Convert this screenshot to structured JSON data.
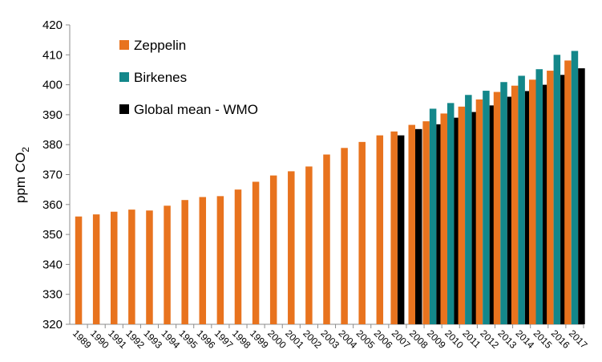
{
  "chart_data": {
    "type": "bar",
    "title": "",
    "xlabel": "",
    "ylabel": {
      "main": "ppm CO",
      "sub": "2"
    },
    "ylim": [
      320,
      420
    ],
    "yticks": [
      320,
      330,
      340,
      350,
      360,
      370,
      380,
      390,
      400,
      410,
      420
    ],
    "grid": false,
    "legend_position": "top-left",
    "categories": [
      "1989",
      "1990",
      "1991",
      "1992",
      "1993",
      "1994",
      "1995",
      "1996",
      "1997",
      "1998",
      "1999",
      "2000",
      "2001",
      "2002",
      "2003",
      "2004",
      "2005",
      "2006",
      "2007",
      "2008",
      "2009",
      "2010",
      "2011",
      "2012",
      "2013",
      "2014",
      "2015",
      "2016",
      "2017"
    ],
    "series": [
      {
        "name": "Zeppelin",
        "color": "#e8731e",
        "values": [
          356.0,
          356.7,
          357.6,
          358.3,
          358.0,
          359.6,
          361.5,
          362.5,
          362.8,
          365.0,
          367.6,
          369.7,
          371.1,
          372.7,
          376.7,
          378.9,
          380.9,
          383.1,
          384.4,
          386.6,
          387.8,
          390.4,
          392.7,
          395.1,
          397.6,
          399.7,
          401.7,
          404.7,
          408.1
        ]
      },
      {
        "name": "Birkenes",
        "color": "#13878a",
        "values": [
          null,
          null,
          null,
          null,
          null,
          null,
          null,
          null,
          null,
          null,
          null,
          null,
          null,
          null,
          null,
          null,
          null,
          null,
          null,
          null,
          392.0,
          393.9,
          396.6,
          398.0,
          400.9,
          403.0,
          405.2,
          410.0,
          411.3
        ]
      },
      {
        "name": "Global mean - WMO",
        "color": "#000000",
        "values": [
          null,
          null,
          null,
          null,
          null,
          null,
          null,
          null,
          null,
          null,
          null,
          null,
          null,
          null,
          null,
          null,
          null,
          null,
          383.1,
          385.2,
          386.8,
          389.0,
          390.9,
          393.1,
          396.0,
          397.9,
          400.0,
          403.3,
          405.5
        ]
      }
    ]
  }
}
